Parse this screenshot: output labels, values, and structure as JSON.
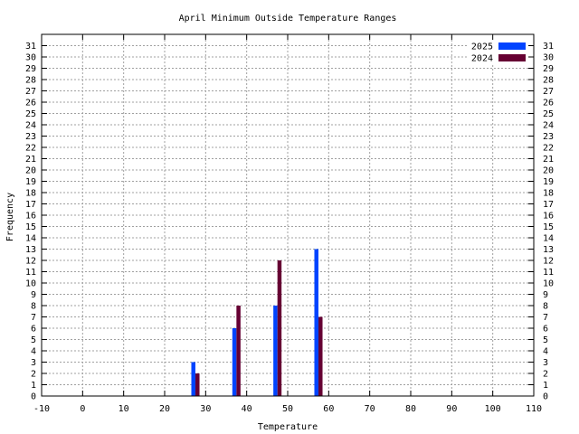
{
  "chart_data": {
    "type": "bar",
    "title": "April Minimum Outside Temperature Ranges",
    "xlabel": "Temperature",
    "ylabel": "Frequency",
    "xlim": [
      -10,
      110
    ],
    "xticks": [
      -10,
      0,
      10,
      20,
      30,
      40,
      50,
      60,
      70,
      80,
      90,
      100,
      110
    ],
    "ylim": [
      0,
      32
    ],
    "yticks": [
      0,
      1,
      2,
      3,
      4,
      5,
      6,
      7,
      8,
      9,
      10,
      11,
      12,
      13,
      14,
      15,
      16,
      17,
      18,
      19,
      20,
      21,
      22,
      23,
      24,
      25,
      26,
      27,
      28,
      29,
      30,
      31
    ],
    "grid": true,
    "legend_position": "top-right",
    "series": [
      {
        "name": "2025",
        "color": "#0044ff",
        "x": [
          27,
          37,
          47,
          57
        ],
        "values": [
          3,
          6,
          8,
          13
        ]
      },
      {
        "name": "2024",
        "color": "#660033",
        "x": [
          28,
          38,
          48,
          58
        ],
        "values": [
          2,
          8,
          12,
          7
        ]
      }
    ]
  }
}
